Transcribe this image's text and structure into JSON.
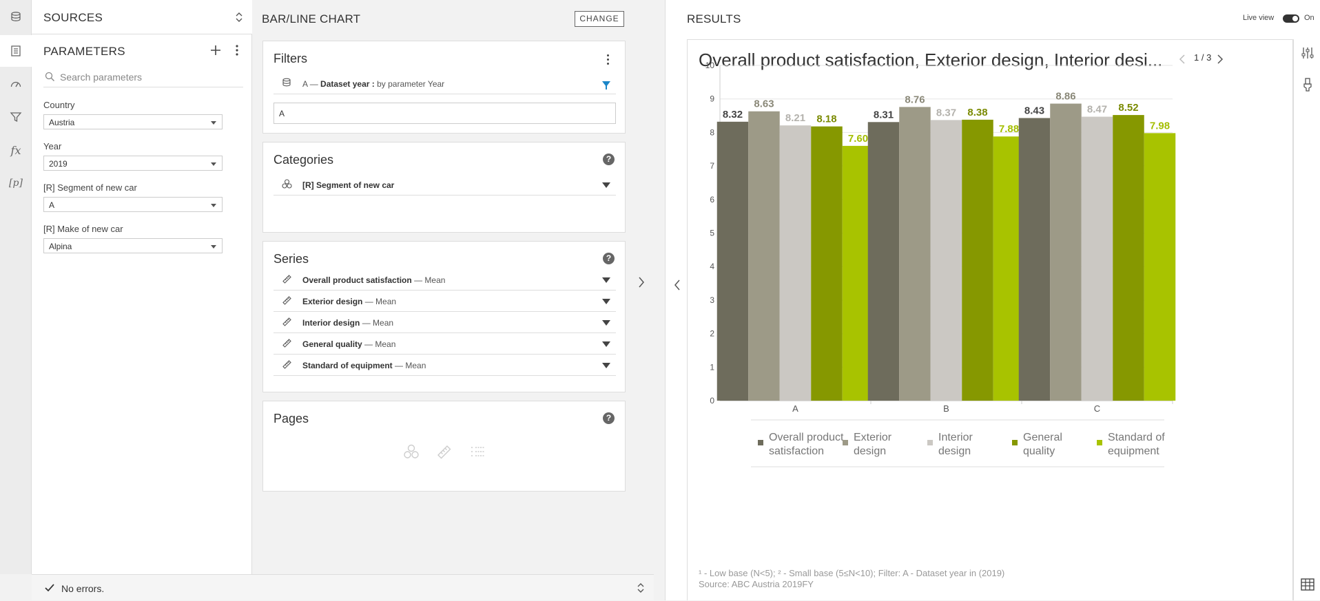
{
  "sources": {
    "title": "SOURCES"
  },
  "parameters": {
    "title": "PARAMETERS",
    "search_placeholder": "Search parameters",
    "fields": [
      {
        "label": "Country",
        "value": "Austria"
      },
      {
        "label": "Year",
        "value": "2019"
      },
      {
        "label": "[R] Segment of new car",
        "value": "A"
      },
      {
        "label": "[R] Make of new car",
        "value": "Alpina"
      }
    ]
  },
  "status": {
    "text": "No errors."
  },
  "config": {
    "title": "BAR/LINE CHART",
    "change_label": "CHANGE",
    "filters": {
      "title": "Filters",
      "item_prefix": "A",
      "item_sep": "—",
      "item_name": "Dataset year :",
      "item_detail": "by parameter Year",
      "value": "A"
    },
    "categories": {
      "title": "Categories",
      "help": "?",
      "items": [
        "[R] Segment of new car"
      ]
    },
    "series": {
      "title": "Series",
      "help": "?",
      "items": [
        {
          "name": "Overall product satisfaction",
          "stat": "Mean"
        },
        {
          "name": "Exterior design",
          "stat": "Mean"
        },
        {
          "name": "Interior design",
          "stat": "Mean"
        },
        {
          "name": "General quality",
          "stat": "Mean"
        },
        {
          "name": "Standard of equipment",
          "stat": "Mean"
        }
      ]
    },
    "pages": {
      "title": "Pages",
      "help": "?"
    }
  },
  "results": {
    "title": "RESULTS",
    "live_view_label": "Live view",
    "live_view_state": "On",
    "pager": "1 / 3",
    "footnote_line1": "¹ - Low base (N<5);   ² - Small base (5≤N<10);   Filter: A - Dataset year in (2019)",
    "footnote_line2": "Source: ABC Austria 2019FY"
  },
  "chart_data": {
    "type": "bar",
    "title": "Overall product satisfaction, Exterior design, Interior desi...",
    "categories": [
      "A",
      "B",
      "C"
    ],
    "ylim": [
      0,
      10
    ],
    "yticks": [
      0,
      1,
      2,
      3,
      4,
      5,
      6,
      7,
      8,
      9,
      10
    ],
    "grid": true,
    "legend_position": "bottom",
    "series": [
      {
        "name": "Overall product satisfaction",
        "legend_lines": [
          "Overall product",
          "satisfaction"
        ],
        "color": "#6e6c5c",
        "label_color": "#444444",
        "values": [
          8.32,
          8.31,
          8.43
        ]
      },
      {
        "name": "Exterior design",
        "legend_lines": [
          "Exterior",
          "design"
        ],
        "color": "#9d9a87",
        "label_color": "#8a8878",
        "values": [
          8.63,
          8.76,
          8.86
        ]
      },
      {
        "name": "Interior design",
        "legend_lines": [
          "Interior",
          "design"
        ],
        "color": "#cbc8c3",
        "label_color": "#b4b2ad",
        "values": [
          8.21,
          8.37,
          8.47
        ]
      },
      {
        "name": "General quality",
        "legend_lines": [
          "General",
          "quality"
        ],
        "color": "#869800",
        "label_color": "#7a8a00",
        "values": [
          8.18,
          8.38,
          8.52
        ]
      },
      {
        "name": "Standard of equipment",
        "legend_lines": [
          "Standard of",
          "equipment"
        ],
        "color": "#a8c300",
        "label_color": "#a4be00",
        "values": [
          7.6,
          7.88,
          7.98
        ]
      }
    ]
  }
}
